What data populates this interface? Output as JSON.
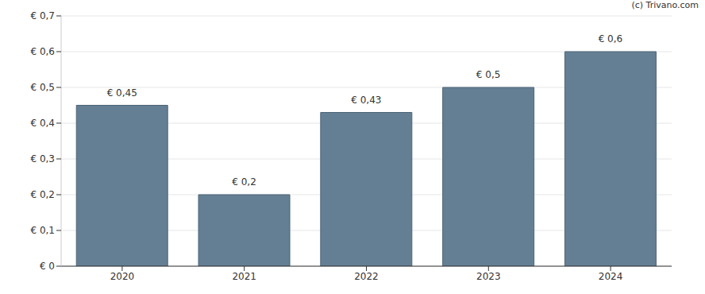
{
  "chart_data": {
    "type": "bar",
    "annotation": "(c) Trivano.com",
    "categories": [
      "2020",
      "2021",
      "2022",
      "2023",
      "2024"
    ],
    "values": [
      0.45,
      0.2,
      0.43,
      0.5,
      0.6
    ],
    "value_labels": [
      "€ 0,45",
      "€ 0,2",
      "€ 0,43",
      "€ 0,5",
      "€ 0,6"
    ],
    "color": "#647f93",
    "ylim": [
      0,
      0.7
    ],
    "yticks": [
      {
        "value": 0,
        "label": "€ 0"
      },
      {
        "value": 0.1,
        "label": "€ 0,1"
      },
      {
        "value": 0.2,
        "label": "€ 0,2"
      },
      {
        "value": 0.3,
        "label": "€ 0,3"
      },
      {
        "value": 0.4,
        "label": "€ 0,4"
      },
      {
        "value": 0.5,
        "label": "€ 0,5"
      },
      {
        "value": 0.6,
        "label": "€ 0,6"
      },
      {
        "value": 0.7,
        "label": "€ 0,7"
      }
    ],
    "grid": true,
    "data_labels": true
  }
}
